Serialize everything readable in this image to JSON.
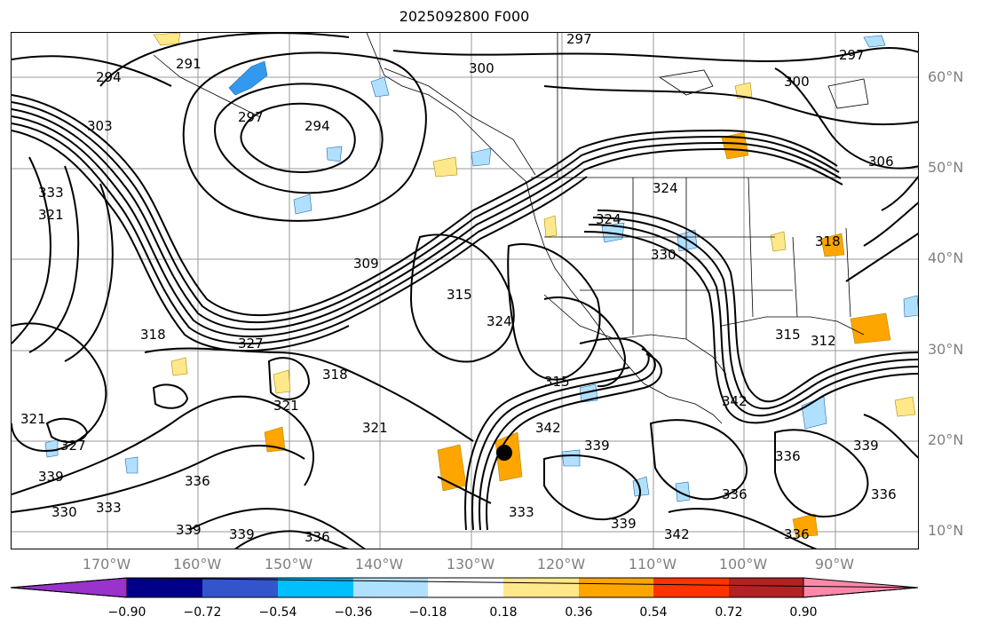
{
  "title": "2025092800 F000",
  "latitude_labels": [
    "60°N",
    "50°N",
    "40°N",
    "30°N",
    "20°N",
    "10°N"
  ],
  "longitude_labels": [
    "170°W",
    "160°W",
    "150°W",
    "140°W",
    "130°W",
    "120°W",
    "110°W",
    "100°W",
    "90°W"
  ],
  "colorbar": {
    "colors": [
      "#9933cc",
      "#000088",
      "#3355cc",
      "#00bfff",
      "#b0e0ff",
      "#ffffff",
      "#ffe88a",
      "#ffa500",
      "#ff3300",
      "#b22222",
      "#ff88aa"
    ],
    "tick_labels": [
      "−0.90",
      "−0.72",
      "−0.54",
      "−0.36",
      "−0.18",
      "0.18",
      "0.36",
      "0.54",
      "0.72",
      "0.90"
    ]
  },
  "contour_labels": [
    "297",
    "291",
    "294",
    "300",
    "297",
    "300",
    "297",
    "294",
    "303",
    "306",
    "333",
    "321",
    "324",
    "309",
    "324",
    "315",
    "324",
    "330",
    "318",
    "327",
    "318",
    "315",
    "312",
    "318",
    "321",
    "321",
    "327",
    "321",
    "336",
    "339",
    "342",
    "315",
    "336",
    "342",
    "339",
    "333",
    "339",
    "336",
    "330",
    "333",
    "339",
    "339",
    "336",
    "342",
    "336",
    "339",
    "336"
  ]
}
